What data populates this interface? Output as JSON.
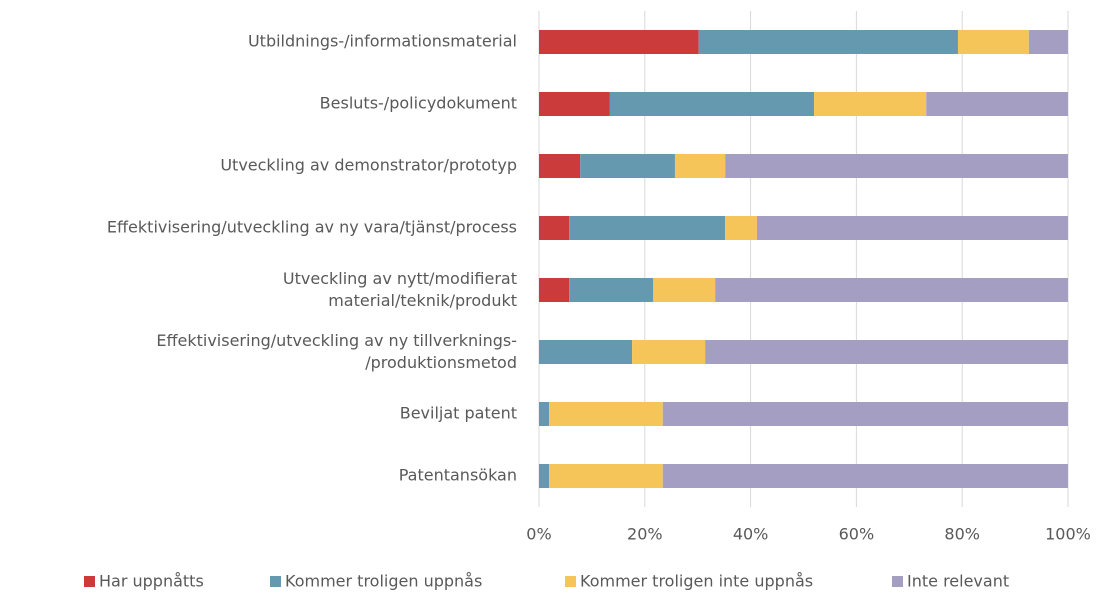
{
  "chart_data": {
    "type": "stacked_barh",
    "categories": [
      "Utbildnings-/informationsmaterial",
      "Besluts-/policydokument",
      "Utveckling av demonstrator/prototyp",
      "Effektivisering/utveckling av ny vara/tjänst/process",
      "Utveckling av nytt/modifierat\nmaterial/teknik/produkt",
      "Effektivisering/utveckling av ny tillverknings-\n/produktionsmetod",
      "Beviljat patent",
      "Patentansökan"
    ],
    "series": [
      {
        "name": "Har uppnåtts",
        "color": "#cc3b3b",
        "values": [
          30.2,
          13.4,
          7.8,
          5.7,
          5.7,
          0,
          0,
          0
        ]
      },
      {
        "name": "Kommer troligen uppnås",
        "color": "#6599b0",
        "values": [
          49.0,
          38.6,
          17.9,
          29.5,
          15.9,
          17.6,
          1.9,
          1.9
        ]
      },
      {
        "name": "Kommer troligen inte uppnås",
        "color": "#f6c55a",
        "values": [
          13.4,
          21.2,
          9.5,
          6.0,
          11.7,
          13.8,
          21.5,
          21.5
        ]
      },
      {
        "name": "Inte relevant",
        "color": "#a59ec3",
        "values": [
          7.4,
          26.8,
          64.8,
          58.8,
          66.7,
          68.6,
          76.6,
          76.6
        ]
      }
    ],
    "xlim": [
      0,
      100
    ],
    "xticks": [
      {
        "value": 0,
        "label": "0%"
      },
      {
        "value": 20,
        "label": "20%"
      },
      {
        "value": 40,
        "label": "40%"
      },
      {
        "value": 60,
        "label": "60%"
      },
      {
        "value": 80,
        "label": "80%"
      },
      {
        "value": 100,
        "label": "100%"
      }
    ],
    "grid": true,
    "legend": "bottom"
  }
}
